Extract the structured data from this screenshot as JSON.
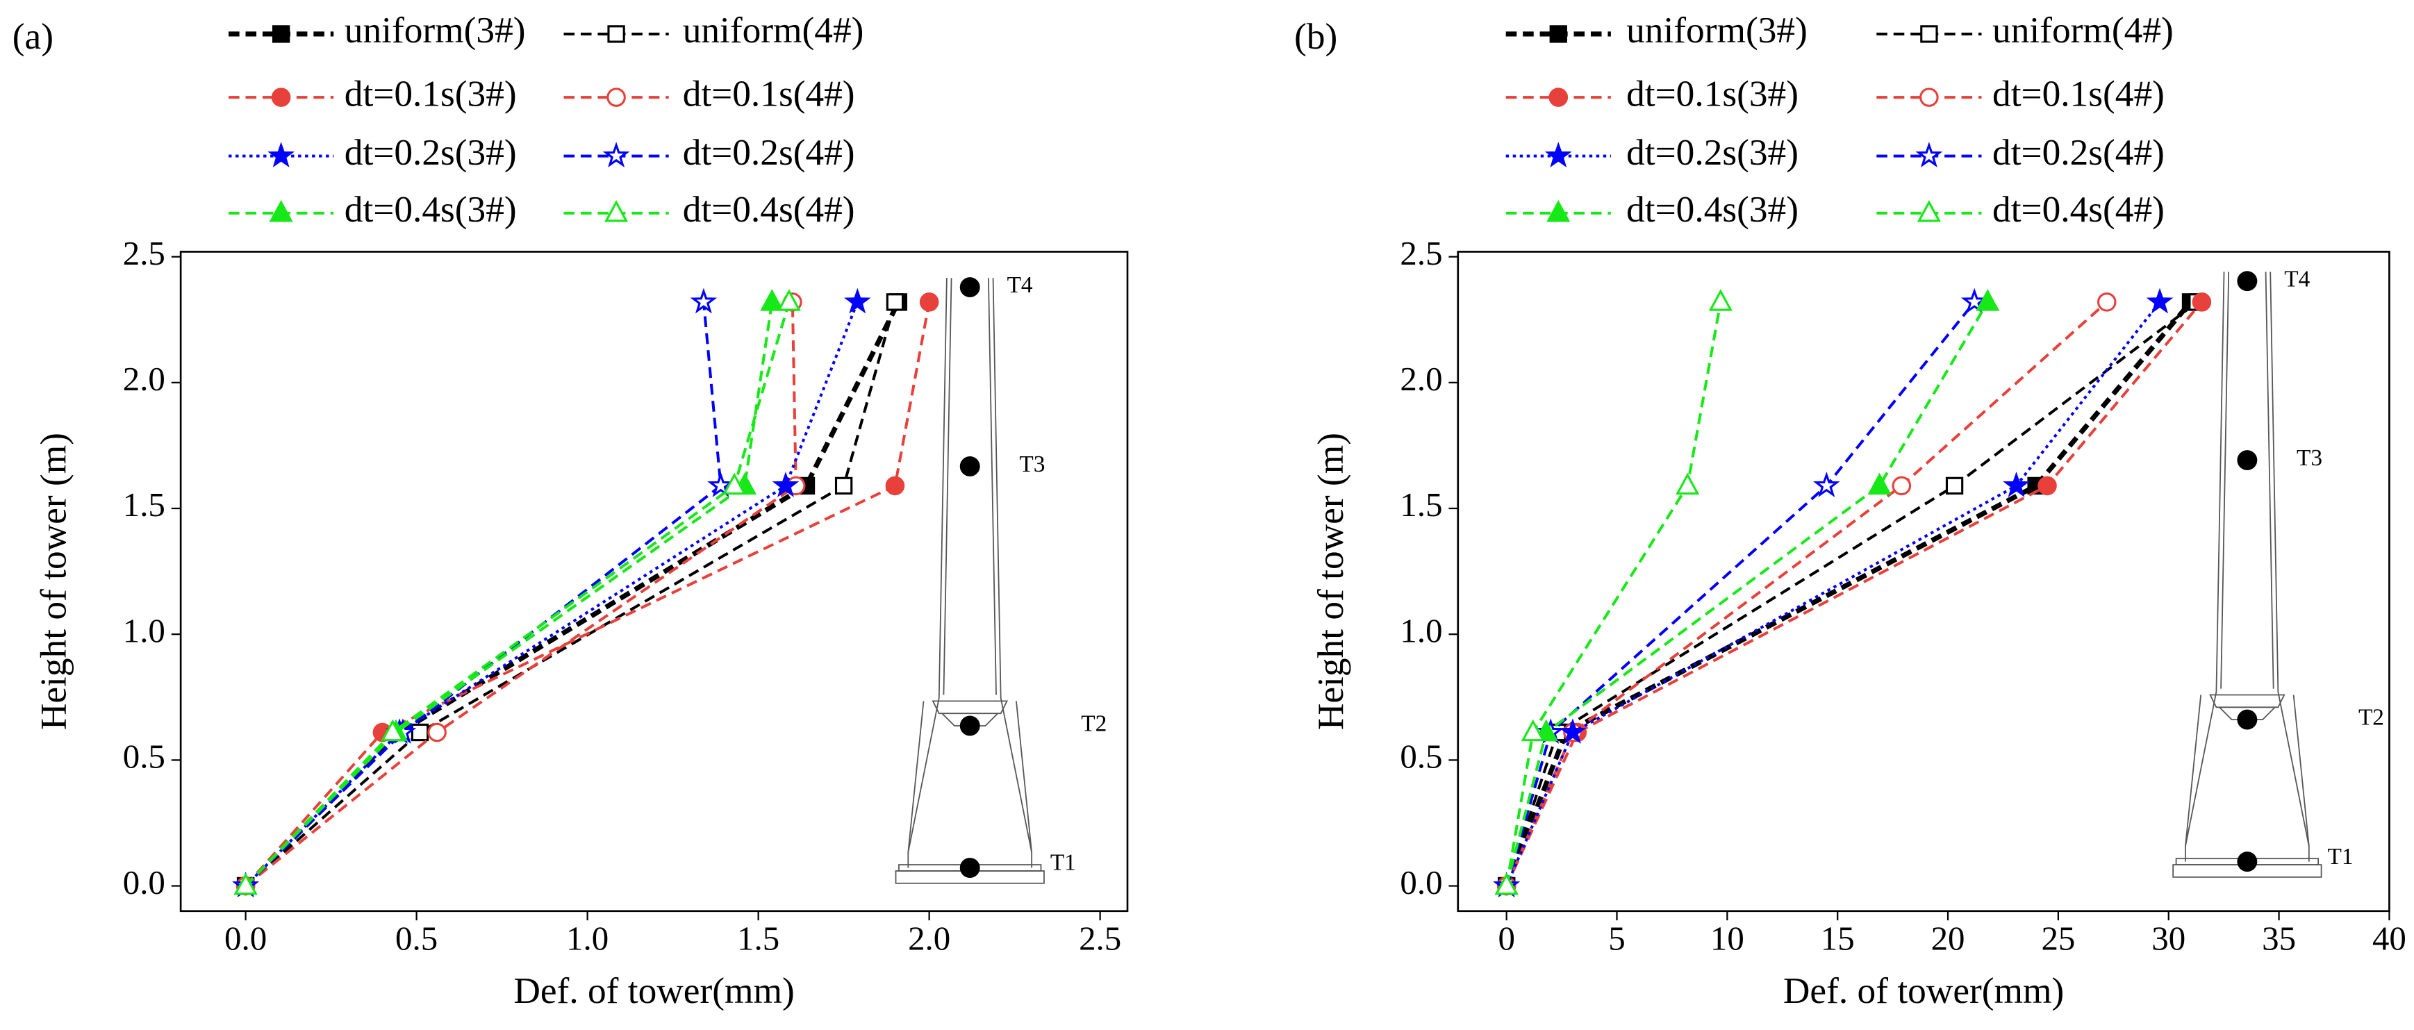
{
  "chart_data": [
    {
      "type": "line",
      "panel_label": "(a)",
      "xlabel": "Def. of  tower(mm)",
      "ylabel": "Height of tower (m)",
      "annotations": [
        "T4",
        "T3",
        "T2",
        "T1"
      ],
      "xlim": [
        -0.19,
        2.58
      ],
      "ylim": [
        -0.1,
        2.52
      ],
      "xticks": [
        {
          "value": 0,
          "label": "0.0"
        },
        {
          "value": 0.5,
          "label": "0.5"
        },
        {
          "value": 1,
          "label": "1.0"
        },
        {
          "value": 1.5,
          "label": "1.5"
        },
        {
          "value": 2,
          "label": "2.0"
        },
        {
          "value": 2.5,
          "label": "2.5"
        }
      ],
      "yticks": [
        {
          "value": 0,
          "label": "0.0"
        },
        {
          "value": 0.5,
          "label": "0.5"
        },
        {
          "value": 1,
          "label": "1.0"
        },
        {
          "value": 1.5,
          "label": "1.5"
        },
        {
          "value": 2,
          "label": "2.0"
        },
        {
          "value": 2.5,
          "label": "2.5"
        }
      ],
      "series": [
        {
          "name": "uniform(3#)",
          "color": "#000000",
          "marker": "square",
          "filled": true,
          "dash": "dashed",
          "x": [
            0,
            0.45,
            1.64,
            1.91
          ],
          "values": [
            0,
            0.61,
            1.59,
            2.32
          ]
        },
        {
          "name": "uniform(4#)",
          "color": "#000000",
          "marker": "square",
          "filled": false,
          "dash": "dashed",
          "x": [
            0,
            0.51,
            1.75,
            1.9
          ],
          "values": [
            0,
            0.61,
            1.59,
            2.32
          ]
        },
        {
          "name": "dt=0.1s(3#)",
          "color": "#e8403a",
          "marker": "circle",
          "filled": true,
          "dash": "dashed",
          "x": [
            0,
            0.4,
            1.9,
            2.0
          ],
          "values": [
            0,
            0.61,
            1.59,
            2.32
          ]
        },
        {
          "name": "dt=0.1s(4#)",
          "color": "#e8403a",
          "marker": "circle",
          "filled": false,
          "dash": "dashed",
          "x": [
            0,
            0.56,
            1.61,
            1.6
          ],
          "values": [
            0,
            0.61,
            1.59,
            2.32
          ]
        },
        {
          "name": "dt=0.2s(3#)",
          "color": "#0000ff",
          "marker": "star",
          "filled": true,
          "dash": "dotted",
          "x": [
            0,
            0.45,
            1.58,
            1.79
          ],
          "values": [
            0,
            0.61,
            1.59,
            2.32
          ]
        },
        {
          "name": "dt=0.2s(4#)",
          "color": "#0000ff",
          "marker": "star",
          "filled": false,
          "dash": "dashed",
          "x": [
            0,
            0.46,
            1.39,
            1.34
          ],
          "values": [
            0,
            0.61,
            1.59,
            2.32
          ]
        },
        {
          "name": "dt=0.4s(3#)",
          "color": "#17e817",
          "marker": "triangle",
          "filled": true,
          "dash": "dashed",
          "x": [
            0,
            0.44,
            1.46,
            1.54
          ],
          "values": [
            0,
            0.61,
            1.59,
            2.32
          ]
        },
        {
          "name": "dt=0.4s(4#)",
          "color": "#17e817",
          "marker": "triangle",
          "filled": false,
          "dash": "dashed",
          "x": [
            0,
            0.43,
            1.43,
            1.59
          ],
          "values": [
            0,
            0.61,
            1.59,
            2.32
          ]
        }
      ]
    },
    {
      "type": "line",
      "panel_label": "(b)",
      "xlabel": "Def. of tower(mm)",
      "ylabel": "Height of tower (m)",
      "annotations": [
        "T4",
        "T3",
        "T2",
        "T1"
      ],
      "xlim": [
        -2.2,
        40
      ],
      "ylim": [
        -0.1,
        2.52
      ],
      "xticks": [
        0,
        5,
        10,
        15,
        20,
        25,
        30,
        35,
        40
      ],
      "yticks": [
        {
          "value": 0,
          "label": "0.0"
        },
        {
          "value": 0.5,
          "label": "0.5"
        },
        {
          "value": 1,
          "label": "1.0"
        },
        {
          "value": 1.5,
          "label": "1.5"
        },
        {
          "value": 2,
          "label": "2.0"
        },
        {
          "value": 2.5,
          "label": "2.5"
        }
      ],
      "series": [
        {
          "name": "uniform(3#)",
          "color": "#000000",
          "marker": "square",
          "filled": true,
          "dash": "dashed",
          "x": [
            0,
            2.7,
            24.0,
            31.0
          ],
          "values": [
            0,
            0.61,
            1.59,
            2.32
          ]
        },
        {
          "name": "uniform(4#)",
          "color": "#000000",
          "marker": "square",
          "filled": false,
          "dash": "dashed",
          "x": [
            0,
            2.3,
            20.3,
            31.3
          ],
          "values": [
            0,
            0.61,
            1.59,
            2.32
          ]
        },
        {
          "name": "dt=0.1s(3#)",
          "color": "#e8403a",
          "marker": "circle",
          "filled": true,
          "dash": "dashed",
          "x": [
            0,
            3.2,
            24.5,
            31.5
          ],
          "values": [
            0,
            0.61,
            1.59,
            2.32
          ]
        },
        {
          "name": "dt=0.1s(4#)",
          "color": "#e8403a",
          "marker": "circle",
          "filled": false,
          "dash": "dashed",
          "x": [
            0,
            3.0,
            17.9,
            27.2
          ],
          "values": [
            0,
            0.61,
            1.59,
            2.32
          ]
        },
        {
          "name": "dt=0.2s(3#)",
          "color": "#0000ff",
          "marker": "star",
          "filled": true,
          "dash": "dotted",
          "x": [
            0,
            3.0,
            23.1,
            29.6
          ],
          "values": [
            0,
            0.61,
            1.59,
            2.32
          ]
        },
        {
          "name": "dt=0.2s(4#)",
          "color": "#0000ff",
          "marker": "star",
          "filled": false,
          "dash": "dashed",
          "x": [
            0,
            2.0,
            14.5,
            21.2
          ],
          "values": [
            0,
            0.61,
            1.59,
            2.32
          ]
        },
        {
          "name": "dt=0.4s(3#)",
          "color": "#17e817",
          "marker": "triangle",
          "filled": true,
          "dash": "dashed",
          "x": [
            0,
            1.8,
            16.9,
            21.8
          ],
          "values": [
            0,
            0.61,
            1.59,
            2.32
          ]
        },
        {
          "name": "dt=0.4s(4#)",
          "color": "#17e817",
          "marker": "triangle",
          "filled": false,
          "dash": "dashed",
          "x": [
            0,
            1.2,
            8.2,
            9.7
          ],
          "values": [
            0,
            0.61,
            1.59,
            2.32
          ]
        }
      ]
    }
  ]
}
